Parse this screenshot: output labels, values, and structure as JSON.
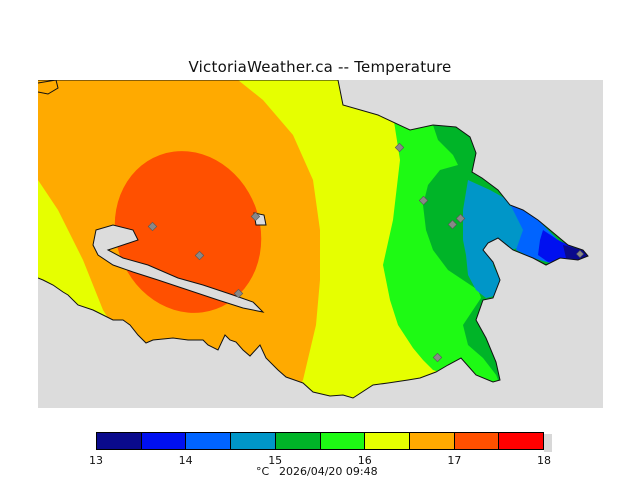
{
  "title": "VictoriaWeather.ca -- Temperature",
  "legend": {
    "units": "°C",
    "timestamp": "2026/04/20 09:48",
    "tick_labels": [
      "13",
      "14",
      "15",
      "16",
      "17",
      "18"
    ],
    "bins": [
      {
        "from": 13.0,
        "to": 13.5,
        "color": "#0a0a8c"
      },
      {
        "from": 13.5,
        "to": 14.0,
        "color": "#0010f0"
      },
      {
        "from": 14.0,
        "to": 14.5,
        "color": "#0064ff"
      },
      {
        "from": 14.5,
        "to": 15.0,
        "color": "#0096c8"
      },
      {
        "from": 15.0,
        "to": 15.5,
        "color": "#00b428"
      },
      {
        "from": 15.5,
        "to": 16.0,
        "color": "#1efa14"
      },
      {
        "from": 16.0,
        "to": 16.5,
        "color": "#e6ff00"
      },
      {
        "from": 16.5,
        "to": 17.0,
        "color": "#ffaa00"
      },
      {
        "from": 17.0,
        "to": 17.5,
        "color": "#ff5000"
      },
      {
        "from": 17.5,
        "to": 18.0,
        "color": "#ff0000"
      }
    ]
  },
  "colors": {
    "background": "#dcdcdc",
    "station_marker": "#888888"
  }
}
